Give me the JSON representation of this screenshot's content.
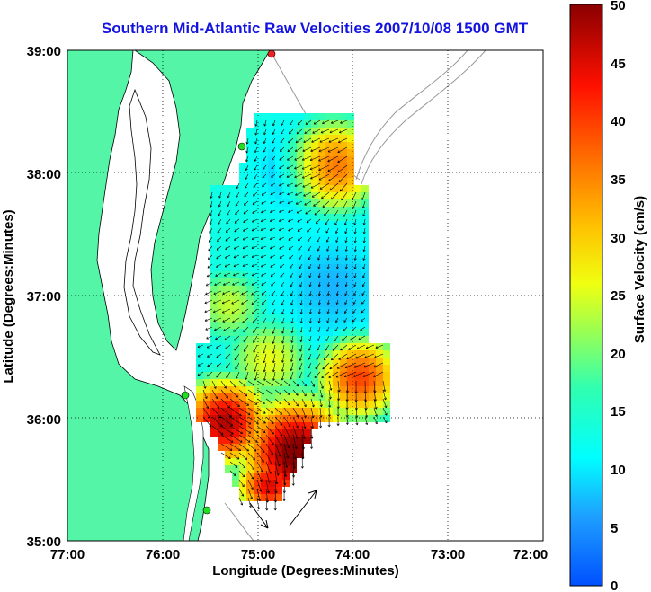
{
  "title": "Southern Mid-Atlantic Raw Velocities 2007/10/08 1500 GMT",
  "xlabel": "Longitude (Degrees:Minutes)",
  "ylabel": "Latitude (Degrees:Minutes)",
  "colorbar_label": "Surface Velocity (cm/s)",
  "x_ticks": [
    "77:00",
    "76:00",
    "75:00",
    "74:00",
    "73:00",
    "72:00"
  ],
  "y_ticks": [
    "39:00",
    "38:00",
    "37:00",
    "36:00",
    "35:00"
  ],
  "colorbar_ticks": [
    "50",
    "45",
    "40",
    "35",
    "30",
    "25",
    "20",
    "15",
    "10",
    "5",
    "0"
  ],
  "colors": {
    "land": "#55f5a8",
    "water": "#ffffff",
    "title": "#1414e0",
    "station": "#22dd22",
    "station_alt": "#ee2222"
  },
  "map": {
    "lon_range": [
      -77,
      -72
    ],
    "lat_range": [
      35,
      39
    ],
    "colorbar_range": [
      0,
      50
    ],
    "grid": "dotted"
  }
}
